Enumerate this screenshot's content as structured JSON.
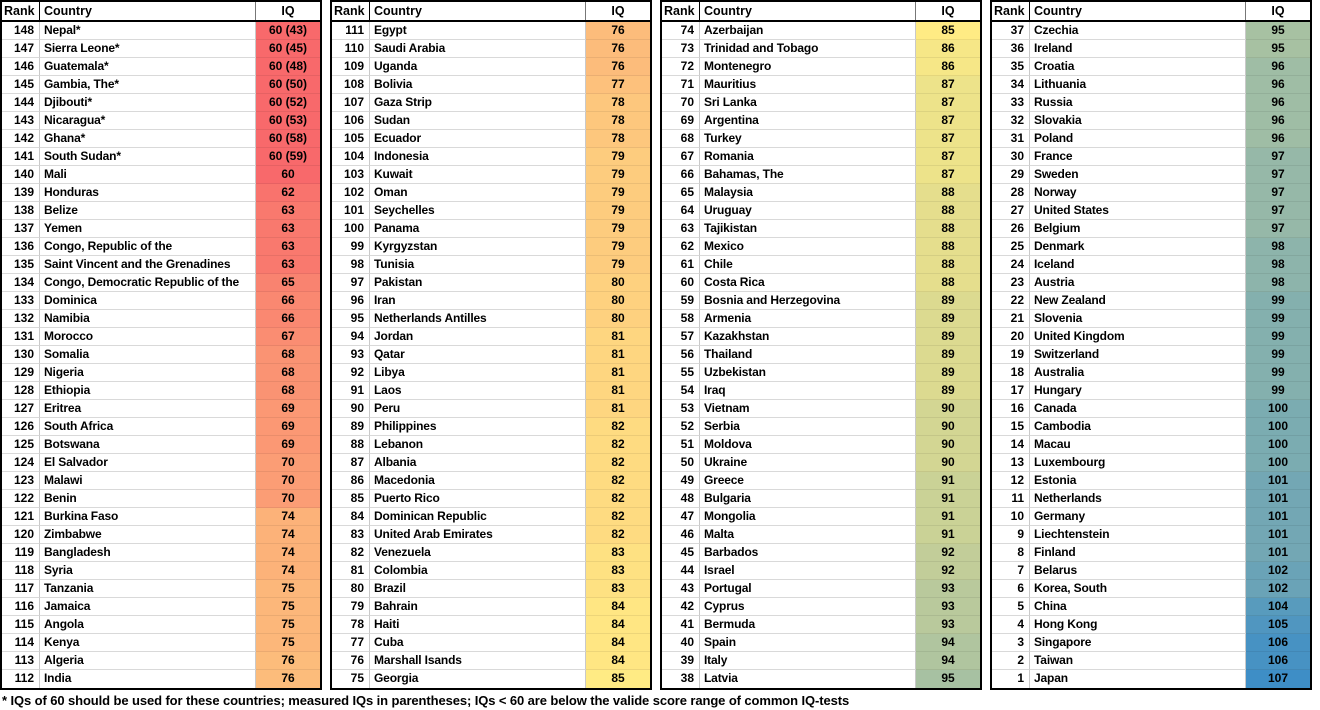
{
  "chart_data": {
    "type": "table",
    "columns": [
      "Rank",
      "Country",
      "IQ"
    ],
    "color_scale": {
      "min_value": 60,
      "mid_value": 85,
      "max_value": 107,
      "min_color": "#F8696B",
      "mid_color": "#FFEB84",
      "max_color": "#3E8EC6"
    },
    "footnote": "* IQs of 60 should be used for these countries; measured IQs in parentheses; IQs < 60 are below the valide score range of common IQ-tests",
    "panels": [
      {
        "rows": [
          [
            148,
            "Nepal*",
            "60 (43)"
          ],
          [
            147,
            "Sierra Leone*",
            "60 (45)"
          ],
          [
            146,
            "Guatemala*",
            "60 (48)"
          ],
          [
            145,
            "Gambia, The*",
            "60 (50)"
          ],
          [
            144,
            "Djibouti*",
            "60 (52)"
          ],
          [
            143,
            "Nicaragua*",
            "60 (53)"
          ],
          [
            142,
            "Ghana*",
            "60 (58)"
          ],
          [
            141,
            "South Sudan*",
            "60 (59)"
          ],
          [
            140,
            "Mali",
            "60"
          ],
          [
            139,
            "Honduras",
            "62"
          ],
          [
            138,
            "Belize",
            "63"
          ],
          [
            137,
            "Yemen",
            "63"
          ],
          [
            136,
            "Congo, Republic of the",
            "63"
          ],
          [
            135,
            "Saint Vincent and the Grenadines",
            "63"
          ],
          [
            134,
            "Congo, Democratic Republic of the",
            "65"
          ],
          [
            133,
            "Dominica",
            "66"
          ],
          [
            132,
            "Namibia",
            "66"
          ],
          [
            131,
            "Morocco",
            "67"
          ],
          [
            130,
            "Somalia",
            "68"
          ],
          [
            129,
            "Nigeria",
            "68"
          ],
          [
            128,
            "Ethiopia",
            "68"
          ],
          [
            127,
            "Eritrea",
            "69"
          ],
          [
            126,
            "South Africa",
            "69"
          ],
          [
            125,
            "Botswana",
            "69"
          ],
          [
            124,
            "El Salvador",
            "70"
          ],
          [
            123,
            "Malawi",
            "70"
          ],
          [
            122,
            "Benin",
            "70"
          ],
          [
            121,
            "Burkina Faso",
            "74"
          ],
          [
            120,
            "Zimbabwe",
            "74"
          ],
          [
            119,
            "Bangladesh",
            "74"
          ],
          [
            118,
            "Syria",
            "74"
          ],
          [
            117,
            "Tanzania",
            "75"
          ],
          [
            116,
            "Jamaica",
            "75"
          ],
          [
            115,
            "Angola",
            "75"
          ],
          [
            114,
            "Kenya",
            "75"
          ],
          [
            113,
            "Algeria",
            "76"
          ],
          [
            112,
            "India",
            "76"
          ]
        ]
      },
      {
        "rows": [
          [
            111,
            "Egypt",
            "76"
          ],
          [
            110,
            "Saudi Arabia",
            "76"
          ],
          [
            109,
            "Uganda",
            "76"
          ],
          [
            108,
            "Bolivia",
            "77"
          ],
          [
            107,
            "Gaza Strip",
            "78"
          ],
          [
            106,
            "Sudan",
            "78"
          ],
          [
            105,
            "Ecuador",
            "78"
          ],
          [
            104,
            "Indonesia",
            "79"
          ],
          [
            103,
            "Kuwait",
            "79"
          ],
          [
            102,
            "Oman",
            "79"
          ],
          [
            101,
            "Seychelles",
            "79"
          ],
          [
            100,
            "Panama",
            "79"
          ],
          [
            99,
            "Kyrgyzstan",
            "79"
          ],
          [
            98,
            "Tunisia",
            "79"
          ],
          [
            97,
            "Pakistan",
            "80"
          ],
          [
            96,
            "Iran",
            "80"
          ],
          [
            95,
            "Netherlands Antilles",
            "80"
          ],
          [
            94,
            "Jordan",
            "81"
          ],
          [
            93,
            "Qatar",
            "81"
          ],
          [
            92,
            "Libya",
            "81"
          ],
          [
            91,
            "Laos",
            "81"
          ],
          [
            90,
            "Peru",
            "81"
          ],
          [
            89,
            "Philippines",
            "82"
          ],
          [
            88,
            "Lebanon",
            "82"
          ],
          [
            87,
            "Albania",
            "82"
          ],
          [
            86,
            "Macedonia",
            "82"
          ],
          [
            85,
            "Puerto Rico",
            "82"
          ],
          [
            84,
            "Dominican Republic",
            "82"
          ],
          [
            83,
            "United Arab Emirates",
            "82"
          ],
          [
            82,
            "Venezuela",
            "83"
          ],
          [
            81,
            "Colombia",
            "83"
          ],
          [
            80,
            "Brazil",
            "83"
          ],
          [
            79,
            "Bahrain",
            "84"
          ],
          [
            78,
            "Haiti",
            "84"
          ],
          [
            77,
            "Cuba",
            "84"
          ],
          [
            76,
            "Marshall Isands",
            "84"
          ],
          [
            75,
            "Georgia",
            "85"
          ]
        ]
      },
      {
        "rows": [
          [
            74,
            "Azerbaijan",
            "85"
          ],
          [
            73,
            "Trinidad and Tobago",
            "86"
          ],
          [
            72,
            "Montenegro",
            "86"
          ],
          [
            71,
            "Mauritius",
            "87"
          ],
          [
            70,
            "Sri Lanka",
            "87"
          ],
          [
            69,
            "Argentina",
            "87"
          ],
          [
            68,
            "Turkey",
            "87"
          ],
          [
            67,
            "Romania",
            "87"
          ],
          [
            66,
            "Bahamas, The",
            "87"
          ],
          [
            65,
            "Malaysia",
            "88"
          ],
          [
            64,
            "Uruguay",
            "88"
          ],
          [
            63,
            "Tajikistan",
            "88"
          ],
          [
            62,
            "Mexico",
            "88"
          ],
          [
            61,
            "Chile",
            "88"
          ],
          [
            60,
            "Costa Rica",
            "88"
          ],
          [
            59,
            "Bosnia and Herzegovina",
            "89"
          ],
          [
            58,
            "Armenia",
            "89"
          ],
          [
            57,
            "Kazakhstan",
            "89"
          ],
          [
            56,
            "Thailand",
            "89"
          ],
          [
            55,
            "Uzbekistan",
            "89"
          ],
          [
            54,
            "Iraq",
            "89"
          ],
          [
            53,
            "Vietnam",
            "90"
          ],
          [
            52,
            "Serbia",
            "90"
          ],
          [
            51,
            "Moldova",
            "90"
          ],
          [
            50,
            "Ukraine",
            "90"
          ],
          [
            49,
            "Greece",
            "91"
          ],
          [
            48,
            "Bulgaria",
            "91"
          ],
          [
            47,
            "Mongolia",
            "91"
          ],
          [
            46,
            "Malta",
            "91"
          ],
          [
            45,
            "Barbados",
            "92"
          ],
          [
            44,
            "Israel",
            "92"
          ],
          [
            43,
            "Portugal",
            "93"
          ],
          [
            42,
            "Cyprus",
            "93"
          ],
          [
            41,
            "Bermuda",
            "93"
          ],
          [
            40,
            "Spain",
            "94"
          ],
          [
            39,
            "Italy",
            "94"
          ],
          [
            38,
            "Latvia",
            "95"
          ]
        ]
      },
      {
        "rows": [
          [
            37,
            "Czechia",
            "95"
          ],
          [
            36,
            "Ireland",
            "95"
          ],
          [
            35,
            "Croatia",
            "96"
          ],
          [
            34,
            "Lithuania",
            "96"
          ],
          [
            33,
            "Russia",
            "96"
          ],
          [
            32,
            "Slovakia",
            "96"
          ],
          [
            31,
            "Poland",
            "96"
          ],
          [
            30,
            "France",
            "97"
          ],
          [
            29,
            "Sweden",
            "97"
          ],
          [
            28,
            "Norway",
            "97"
          ],
          [
            27,
            "United States",
            "97"
          ],
          [
            26,
            "Belgium",
            "97"
          ],
          [
            25,
            "Denmark",
            "98"
          ],
          [
            24,
            "Iceland",
            "98"
          ],
          [
            23,
            "Austria",
            "98"
          ],
          [
            22,
            "New Zealand",
            "99"
          ],
          [
            21,
            "Slovenia",
            "99"
          ],
          [
            20,
            "United Kingdom",
            "99"
          ],
          [
            19,
            "Switzerland",
            "99"
          ],
          [
            18,
            "Australia",
            "99"
          ],
          [
            17,
            "Hungary",
            "99"
          ],
          [
            16,
            "Canada",
            "100"
          ],
          [
            15,
            "Cambodia",
            "100"
          ],
          [
            14,
            "Macau",
            "100"
          ],
          [
            13,
            "Luxembourg",
            "100"
          ],
          [
            12,
            "Estonia",
            "101"
          ],
          [
            11,
            "Netherlands",
            "101"
          ],
          [
            10,
            "Germany",
            "101"
          ],
          [
            9,
            "Liechtenstein",
            "101"
          ],
          [
            8,
            "Finland",
            "101"
          ],
          [
            7,
            "Belarus",
            "102"
          ],
          [
            6,
            "Korea, South",
            "102"
          ],
          [
            5,
            "China",
            "104"
          ],
          [
            4,
            "Hong Kong",
            "105"
          ],
          [
            3,
            "Singapore",
            "106"
          ],
          [
            2,
            "Taiwan",
            "106"
          ],
          [
            1,
            "Japan",
            "107"
          ]
        ]
      }
    ]
  }
}
